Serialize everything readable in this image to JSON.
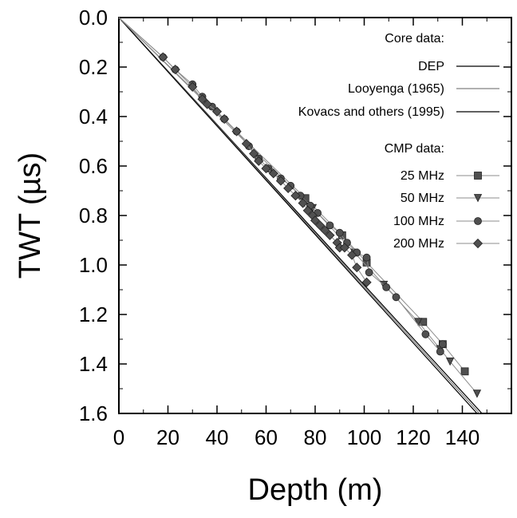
{
  "chart_data": {
    "type": "scatter",
    "title": "",
    "xlabel": "Depth (m)",
    "ylabel": "TWT (µs)",
    "xlim": [
      0,
      160
    ],
    "ylim": [
      0,
      1.6
    ],
    "y_inverted": true,
    "grid": false,
    "legend_placement": "top-right",
    "x_ticks": [
      "0",
      "20",
      "40",
      "60",
      "80",
      "100",
      "120",
      "140"
    ],
    "y_ticks": [
      "0.0",
      "0.2",
      "0.4",
      "0.6",
      "0.8",
      "1.0",
      "1.2",
      "1.4",
      "1.6"
    ],
    "legend": {
      "core_header": "Core data:",
      "cmp_header": "CMP data:"
    },
    "core_series": [
      {
        "name": "DEP",
        "color": "#000000",
        "x": [
          0,
          148
        ],
        "y": [
          0,
          1.6
        ]
      },
      {
        "name": "Looyenga (1965)",
        "color": "#808080",
        "x": [
          0,
          147
        ],
        "y": [
          0,
          1.6
        ]
      },
      {
        "name": "Kovacs and others (1995)",
        "color": "#000000",
        "x": [
          0,
          146
        ],
        "y": [
          0,
          1.6
        ]
      }
    ],
    "cmp_series": [
      {
        "name": "25 MHz",
        "marker": "square",
        "color": "#505050",
        "x": [
          76,
          91,
          101,
          124,
          132,
          141
        ],
        "y": [
          0.73,
          0.88,
          0.99,
          1.23,
          1.32,
          1.43
        ]
      },
      {
        "name": "50 MHz",
        "marker": "triangle-down",
        "color": "#505050",
        "x": [
          79,
          96,
          108,
          122,
          131,
          135,
          146
        ],
        "y": [
          0.77,
          0.95,
          1.08,
          1.23,
          1.34,
          1.39,
          1.52
        ]
      },
      {
        "name": "100 MHz",
        "marker": "circle",
        "color": "#505050",
        "x": [
          18,
          23,
          30,
          34,
          38,
          43,
          48,
          53,
          57,
          61,
          66,
          70,
          74,
          78,
          81,
          86,
          90,
          93,
          97,
          101,
          102,
          109,
          113,
          125,
          131,
          132
        ],
        "y": [
          0.16,
          0.21,
          0.27,
          0.32,
          0.36,
          0.41,
          0.46,
          0.52,
          0.57,
          0.61,
          0.65,
          0.68,
          0.72,
          0.76,
          0.79,
          0.84,
          0.87,
          0.91,
          0.95,
          0.97,
          1.03,
          1.09,
          1.13,
          1.28,
          1.35,
          1.32
        ]
      },
      {
        "name": "200 MHz",
        "marker": "diamond",
        "color": "#505050",
        "x": [
          18,
          23,
          30,
          34,
          36,
          40,
          43,
          48,
          52,
          55,
          57,
          60,
          63,
          66,
          69,
          72,
          75,
          77,
          79,
          80,
          82,
          84,
          86,
          89,
          90,
          92,
          95,
          97,
          101
        ],
        "y": [
          0.16,
          0.21,
          0.28,
          0.33,
          0.35,
          0.38,
          0.41,
          0.46,
          0.51,
          0.55,
          0.58,
          0.61,
          0.63,
          0.66,
          0.69,
          0.72,
          0.75,
          0.78,
          0.8,
          0.82,
          0.84,
          0.86,
          0.88,
          0.91,
          0.93,
          0.93,
          0.96,
          1.01,
          1.07
        ]
      }
    ]
  }
}
